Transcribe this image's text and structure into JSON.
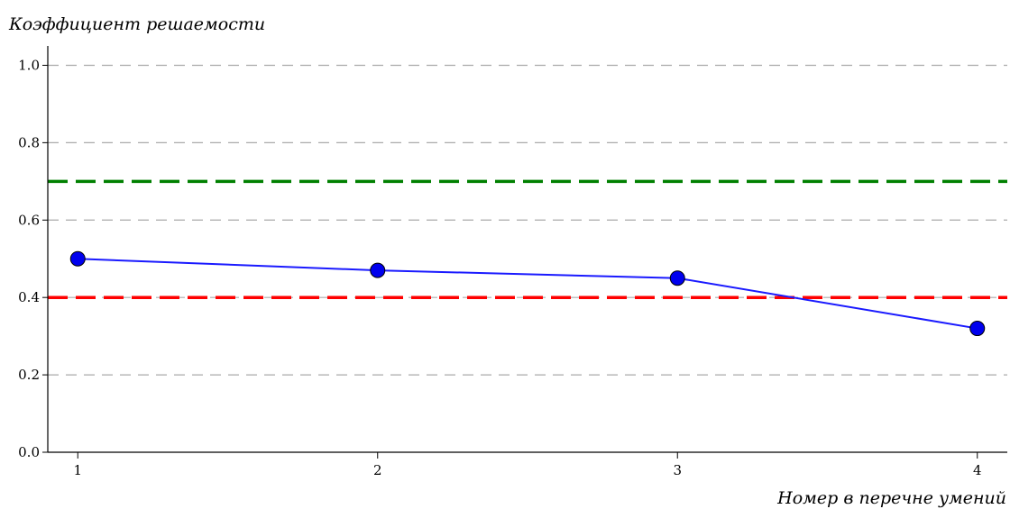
{
  "chart_data": {
    "type": "line",
    "title": "",
    "xlabel": "Номер в перечне умений",
    "ylabel": "Коэффициент решаемости",
    "x": [
      1,
      2,
      3,
      4
    ],
    "xlim": [
      0.9,
      4.1
    ],
    "ylim": [
      0.0,
      1.05
    ],
    "x_ticks": [
      "1",
      "2",
      "3",
      "4"
    ],
    "y_ticks": [
      "0.0",
      "0.2",
      "0.4",
      "0.6",
      "0.8",
      "1.0"
    ],
    "grid": "horizontal dashed",
    "series": [
      {
        "values": [
          0.5,
          0.47,
          0.45,
          0.32
        ],
        "color": "#1a1aff",
        "marker": "circle"
      }
    ],
    "reference_lines": [
      {
        "value": 0.7,
        "color": "#008000",
        "style": "dashed"
      },
      {
        "value": 0.4,
        "color": "#ff0000",
        "style": "dashed"
      }
    ]
  }
}
